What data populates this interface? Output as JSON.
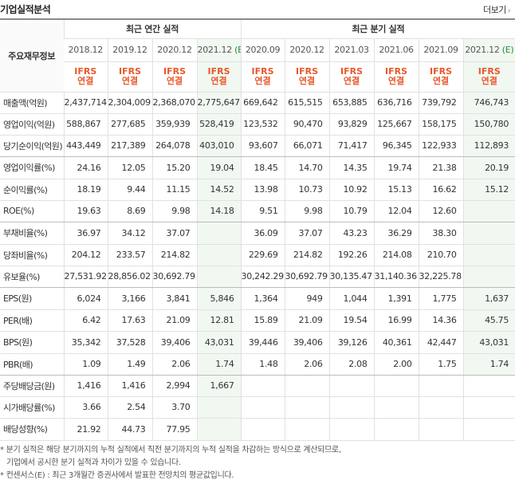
{
  "header": {
    "title": "기업실적분석",
    "more_label": "더보기"
  },
  "table": {
    "corner_label": "주요재무정보",
    "groups": {
      "annual": "최근 연간 실적",
      "quarterly": "최근 분기 실적"
    },
    "periods": [
      "2018.12",
      "2019.12",
      "2020.12",
      "2021.12",
      "2020.09",
      "2020.12",
      "2021.03",
      "2021.06",
      "2021.09",
      "2021.12"
    ],
    "estimate_mark": "(E)",
    "ifrs_line1": "IFRS",
    "ifrs_line2": "연결",
    "rows": [
      {
        "label": "매출액(억원)",
        "values": [
          "2,437,714",
          "2,304,009",
          "2,368,070",
          "2,775,647",
          "669,642",
          "615,515",
          "653,885",
          "636,716",
          "739,792",
          "746,743"
        ]
      },
      {
        "label": "영업이익(억원)",
        "values": [
          "588,867",
          "277,685",
          "359,939",
          "528,419",
          "123,532",
          "90,470",
          "93,829",
          "125,667",
          "158,175",
          "150,780"
        ]
      },
      {
        "label": "당기순이익(억원)",
        "values": [
          "443,449",
          "217,389",
          "264,078",
          "403,010",
          "93,607",
          "66,071",
          "71,417",
          "96,345",
          "122,933",
          "112,893"
        ]
      },
      {
        "label": "영업이익률(%)",
        "values": [
          "24.16",
          "12.05",
          "15.20",
          "19.04",
          "18.45",
          "14.70",
          "14.35",
          "19.74",
          "21.38",
          "20.19"
        ]
      },
      {
        "label": "순이익률(%)",
        "values": [
          "18.19",
          "9.44",
          "11.15",
          "14.52",
          "13.98",
          "10.73",
          "10.92",
          "15.13",
          "16.62",
          "15.12"
        ]
      },
      {
        "label": "ROE(%)",
        "values": [
          "19.63",
          "8.69",
          "9.98",
          "14.18",
          "9.51",
          "9.98",
          "10.79",
          "12.04",
          "12.60",
          ""
        ]
      },
      {
        "label": "부채비율(%)",
        "values": [
          "36.97",
          "34.12",
          "37.07",
          "",
          "36.09",
          "37.07",
          "43.23",
          "36.29",
          "38.30",
          ""
        ]
      },
      {
        "label": "당좌비율(%)",
        "values": [
          "204.12",
          "233.57",
          "214.82",
          "",
          "229.69",
          "214.82",
          "192.26",
          "214.08",
          "210.70",
          ""
        ]
      },
      {
        "label": "유보율(%)",
        "values": [
          "27,531.92",
          "28,856.02",
          "30,692.79",
          "",
          "30,242.29",
          "30,692.79",
          "30,135.47",
          "31,140.36",
          "32,225.78",
          ""
        ]
      },
      {
        "label": "EPS(원)",
        "values": [
          "6,024",
          "3,166",
          "3,841",
          "5,846",
          "1,364",
          "949",
          "1,044",
          "1,391",
          "1,775",
          "1,637"
        ]
      },
      {
        "label": "PER(배)",
        "values": [
          "6.42",
          "17.63",
          "21.09",
          "12.81",
          "15.89",
          "21.09",
          "19.54",
          "16.99",
          "14.36",
          "45.75"
        ]
      },
      {
        "label": "BPS(원)",
        "values": [
          "35,342",
          "37,528",
          "39,406",
          "43,031",
          "39,446",
          "39,406",
          "39,126",
          "40,361",
          "42,447",
          "43,031"
        ]
      },
      {
        "label": "PBR(배)",
        "values": [
          "1.09",
          "1.49",
          "2.06",
          "1.74",
          "1.48",
          "2.06",
          "2.08",
          "2.00",
          "1.75",
          "1.74"
        ]
      },
      {
        "label": "주당배당금(원)",
        "values": [
          "1,416",
          "1,416",
          "2,994",
          "1,667",
          "",
          "",
          "",
          "",
          "",
          ""
        ]
      },
      {
        "label": "시가배당률(%)",
        "values": [
          "3.66",
          "2.54",
          "3.70",
          "",
          "",
          "",
          "",
          "",
          "",
          ""
        ]
      },
      {
        "label": "배당성향(%)",
        "values": [
          "21.92",
          "44.73",
          "77.95",
          "",
          "",
          "",
          "",
          "",
          "",
          ""
        ]
      }
    ]
  },
  "notes": [
    "* 분기 실적은 해당 분기까지의 누적 실적에서 직전 분기까지의 누적 실적을 차감하는 방식으로 계산되므로,",
    "기업에서 공시한 분기 실적과 차이가 있을 수 있습니다.",
    "* 컨센서스(E) : 최근 3개월간 증권사에서 발표한 전망치의 평균값입니다."
  ]
}
